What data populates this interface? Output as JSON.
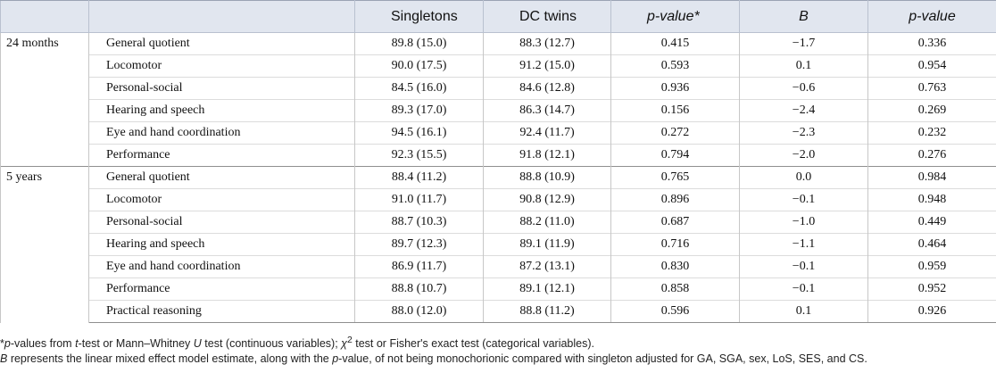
{
  "table": {
    "headers": {
      "col0": "",
      "col1": "",
      "singletons": "Singletons",
      "dc_twins": "DC twins",
      "pvalue_star": "p-value*",
      "b": "B",
      "pvalue": "p-value"
    },
    "groups": [
      {
        "label": "24 months",
        "rows": [
          {
            "label": "General quotient",
            "singletons": "89.8 (15.0)",
            "dc_twins": "88.3 (12.7)",
            "p1": "0.415",
            "b": "−1.7",
            "p2": "0.336"
          },
          {
            "label": "Locomotor",
            "singletons": "90.0 (17.5)",
            "dc_twins": "91.2 (15.0)",
            "p1": "0.593",
            "b": "0.1",
            "p2": "0.954"
          },
          {
            "label": "Personal-social",
            "singletons": "84.5 (16.0)",
            "dc_twins": "84.6 (12.8)",
            "p1": "0.936",
            "b": "−0.6",
            "p2": "0.763"
          },
          {
            "label": "Hearing and speech",
            "singletons": "89.3 (17.0)",
            "dc_twins": "86.3 (14.7)",
            "p1": "0.156",
            "b": "−2.4",
            "p2": "0.269"
          },
          {
            "label": "Eye and hand coordination",
            "singletons": "94.5 (16.1)",
            "dc_twins": "92.4 (11.7)",
            "p1": "0.272",
            "b": "−2.3",
            "p2": "0.232"
          },
          {
            "label": "Performance",
            "singletons": "92.3 (15.5)",
            "dc_twins": "91.8 (12.1)",
            "p1": "0.794",
            "b": "−2.0",
            "p2": "0.276"
          }
        ]
      },
      {
        "label": "5 years",
        "rows": [
          {
            "label": "General quotient",
            "singletons": "88.4 (11.2)",
            "dc_twins": "88.8 (10.9)",
            "p1": "0.765",
            "b": "0.0",
            "p2": "0.984"
          },
          {
            "label": "Locomotor",
            "singletons": "91.0 (11.7)",
            "dc_twins": "90.8 (12.9)",
            "p1": "0.896",
            "b": "−0.1",
            "p2": "0.948"
          },
          {
            "label": "Personal-social",
            "singletons": "88.7 (10.3)",
            "dc_twins": "88.2 (11.0)",
            "p1": "0.687",
            "b": "−1.0",
            "p2": "0.449"
          },
          {
            "label": "Hearing and speech",
            "singletons": "89.7 (12.3)",
            "dc_twins": "89.1 (11.9)",
            "p1": "0.716",
            "b": "−1.1",
            "p2": "0.464"
          },
          {
            "label": "Eye and hand coordination",
            "singletons": "86.9 (11.7)",
            "dc_twins": "87.2 (13.1)",
            "p1": "0.830",
            "b": "−0.1",
            "p2": "0.959"
          },
          {
            "label": "Performance",
            "singletons": "88.8 (10.7)",
            "dc_twins": "89.1 (12.1)",
            "p1": "0.858",
            "b": "−0.1",
            "p2": "0.952"
          },
          {
            "label": "Practical reasoning",
            "singletons": "88.0 (12.0)",
            "dc_twins": "88.8 (11.2)",
            "p1": "0.596",
            "b": "0.1",
            "p2": "0.926"
          }
        ]
      }
    ]
  },
  "footnotes": {
    "note1_a": "p",
    "note1_b": "-values from ",
    "note1_c": "t",
    "note1_d": "-test or Mann–Whitney ",
    "note1_e": "U",
    "note1_f": " test (continuous variables); ",
    "note1_g": "χ",
    "note1_h": "2",
    "note1_i": " test or Fisher's exact test (categorical variables).",
    "note2_a": "B",
    "note2_b": " represents the linear mixed effect model estimate, along with the ",
    "note2_c": "p",
    "note2_d": "-value, of not being monochorionic compared with singleton adjusted for GA, SGA, sex, LoS, SES, and CS."
  }
}
